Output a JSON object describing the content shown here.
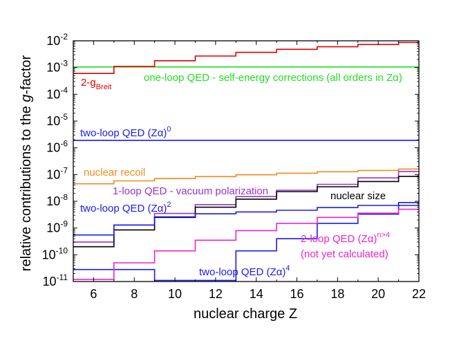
{
  "chart_data": {
    "type": "line",
    "scale": "log-y",
    "xlabel": "nuclear charge Z",
    "ylabel": "relative contributions to the g-factor",
    "xlim": [
      5,
      22
    ],
    "ylim": [
      1e-11,
      0.01
    ],
    "xticks": [
      6,
      8,
      10,
      12,
      14,
      16,
      18,
      20,
      22
    ],
    "yticks": [
      {
        "base": "10",
        "exp": "-11",
        "v": 1e-11
      },
      {
        "base": "10",
        "exp": "-10",
        "v": 1e-10
      },
      {
        "base": "10",
        "exp": "-9",
        "v": 1e-09
      },
      {
        "base": "10",
        "exp": "-8",
        "v": 1e-08
      },
      {
        "base": "10",
        "exp": "-7",
        "v": 1e-07
      },
      {
        "base": "10",
        "exp": "-6",
        "v": 1e-06
      },
      {
        "base": "10",
        "exp": "-5",
        "v": 1e-05
      },
      {
        "base": "10",
        "exp": "-4",
        "v": 0.0001
      },
      {
        "base": "10",
        "exp": "-3",
        "v": 0.001
      },
      {
        "base": "10",
        "exp": "-2",
        "v": 0.01
      }
    ],
    "series": [
      {
        "name": "one-loop QED - self-energy corrections (all orders in Zα)",
        "color": "#22dd22",
        "edges": [
          5,
          22
        ],
        "values": [
          0.00105
        ]
      },
      {
        "name": "2-g Breit",
        "color": "#dd0000",
        "edges": [
          5,
          7,
          9,
          11,
          13,
          15,
          17,
          19,
          21,
          22
        ],
        "values": [
          0.0006,
          0.0011,
          0.0018,
          0.0027,
          0.0037,
          0.0048,
          0.006,
          0.0073,
          0.0086
        ]
      },
      {
        "name": "two-loop QED (Zα)^0",
        "color": "#1a1aee",
        "edges": [
          5,
          22
        ],
        "values": [
          1.9e-06
        ]
      },
      {
        "name": "nuclear recoil",
        "color": "#f08a1c",
        "edges": [
          5,
          7,
          9,
          11,
          13,
          15,
          17,
          19,
          21,
          22
        ],
        "values": [
          4.5e-08,
          5.8e-08,
          7.1e-08,
          8.4e-08,
          9.8e-08,
          1.12e-07,
          1.27e-07,
          1.42e-07,
          1.6e-07
        ]
      },
      {
        "name": "1-loop QED - vacuum polarization",
        "color": "#9933cc",
        "edges": [
          5,
          7,
          9,
          11,
          13,
          15,
          17,
          19,
          21,
          22
        ],
        "values": [
          3e-10,
          1.3e-09,
          3.5e-09,
          7.5e-09,
          1.5e-08,
          2.6e-08,
          4.3e-08,
          7.5e-08,
          1.3e-07
        ]
      },
      {
        "name": "nuclear size",
        "color": "#000000",
        "edges": [
          5,
          7,
          9,
          11,
          13,
          15,
          17,
          19,
          21,
          22
        ],
        "values": [
          2e-10,
          8.5e-10,
          2.5e-09,
          6e-09,
          1.2e-08,
          2.3e-08,
          3.5e-08,
          5.5e-08,
          8.5e-08
        ]
      },
      {
        "name": "two-loop QED (Zα)^2",
        "color": "#1a1aee",
        "edges": [
          5,
          7,
          9,
          11,
          13,
          15,
          17,
          19,
          21,
          22
        ],
        "values": [
          5.5e-10,
          1.3e-09,
          2.6e-09,
          3.4e-09,
          4e-09,
          4.6e-09,
          5.8e-09,
          7e-09,
          9e-09
        ]
      },
      {
        "name": "two-loop QED (Zα)^4",
        "color": "#1a1aee",
        "edges": [
          5,
          7,
          9,
          11,
          13,
          15,
          17,
          19,
          21,
          22
        ],
        "values": [
          2.8e-11,
          2.8e-11,
          1.1e-11,
          1.1e-11,
          1.4e-10,
          4e-10,
          1.5e-09,
          3.3e-09,
          7e-09
        ]
      },
      {
        "name": "2-loop QED (Zα)^n>4 (not yet calculated)",
        "color": "#ee22cc",
        "edges": [
          5,
          7,
          9,
          11,
          13,
          15,
          17,
          19,
          21,
          22
        ],
        "values": [
          1.2e-11,
          5e-11,
          1.4e-10,
          3.5e-10,
          8e-10,
          1.5e-09,
          2.5e-09,
          3.6e-09,
          5e-09
        ]
      }
    ],
    "annotations": [
      {
        "id": "one_loop",
        "color": "#22dd22",
        "parts": [
          {
            "t": "one-loop QED - self-energy corrections (all orders in Z"
          },
          {
            "t": "α"
          },
          {
            "t": ")"
          }
        ]
      },
      {
        "id": "breit",
        "color": "#dd0000",
        "parts": [
          {
            "t": "2-g"
          },
          {
            "t": "Breit",
            "sub": true
          }
        ]
      },
      {
        "id": "two_loop_0",
        "color": "#1a1aee",
        "parts": [
          {
            "t": "two-loop QED (Z"
          },
          {
            "t": "α"
          },
          {
            "t": ")"
          },
          {
            "t": "0",
            "sup": true
          }
        ]
      },
      {
        "id": "recoil",
        "color": "#f08a1c",
        "parts": [
          {
            "t": "nuclear recoil"
          }
        ]
      },
      {
        "id": "vacpol",
        "color": "#9933cc",
        "parts": [
          {
            "t": "1-loop QED - vacuum polarization"
          }
        ]
      },
      {
        "id": "size",
        "color": "#000000",
        "parts": [
          {
            "t": "nuclear size"
          }
        ]
      },
      {
        "id": "two_loop_2",
        "color": "#1a1aee",
        "parts": [
          {
            "t": "two-loop QED (Z"
          },
          {
            "t": "α"
          },
          {
            "t": ")"
          },
          {
            "t": "2",
            "sup": true
          }
        ]
      },
      {
        "id": "two_loop_n",
        "color": "#ee22cc",
        "parts": [
          {
            "t": "2-loop QED (Z"
          },
          {
            "t": "α"
          },
          {
            "t": ")"
          },
          {
            "t": "n>4",
            "sup": true
          }
        ]
      },
      {
        "id": "not_yet",
        "color": "#ee22cc",
        "parts": [
          {
            "t": "(not yet calculated)"
          }
        ]
      },
      {
        "id": "two_loop_4",
        "color": "#1a1aee",
        "parts": [
          {
            "t": "two-loop QED (Z"
          },
          {
            "t": "α"
          },
          {
            "t": ")"
          },
          {
            "t": "4",
            "sup": true
          }
        ]
      }
    ]
  }
}
